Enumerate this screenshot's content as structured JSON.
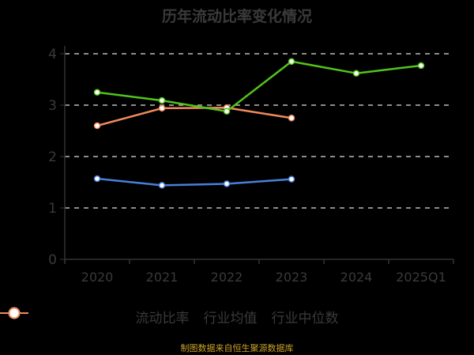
{
  "title": "历年流动比率变化情况",
  "source": "制图数据来自恒生聚源数据库",
  "colors": {
    "current_ratio": "#52c41a",
    "industry_mean": "#4a7fd8",
    "industry_median": "#f08a5d",
    "background": "#000000"
  },
  "chart_data": {
    "type": "line",
    "title": "历年流动比率变化情况",
    "xlabel": "",
    "ylabel": "",
    "categories": [
      "2020",
      "2021",
      "2022",
      "2023",
      "2024",
      "2025Q1"
    ],
    "ylim": [
      0,
      4
    ],
    "yticks": [
      0,
      1,
      2,
      3,
      4
    ],
    "grid": true,
    "legend_position": "bottom",
    "series": [
      {
        "name": "流动比率",
        "values": [
          3.25,
          3.09,
          2.88,
          3.85,
          3.62,
          3.77
        ]
      },
      {
        "name": "行业均值",
        "values": [
          1.57,
          1.44,
          1.47,
          1.56,
          null,
          null
        ]
      },
      {
        "name": "行业中位数",
        "values": [
          2.6,
          2.94,
          2.95,
          2.75,
          null,
          null
        ]
      }
    ]
  },
  "legend": [
    {
      "label": "流动比率"
    },
    {
      "label": "行业均值"
    },
    {
      "label": "行业中位数"
    }
  ]
}
